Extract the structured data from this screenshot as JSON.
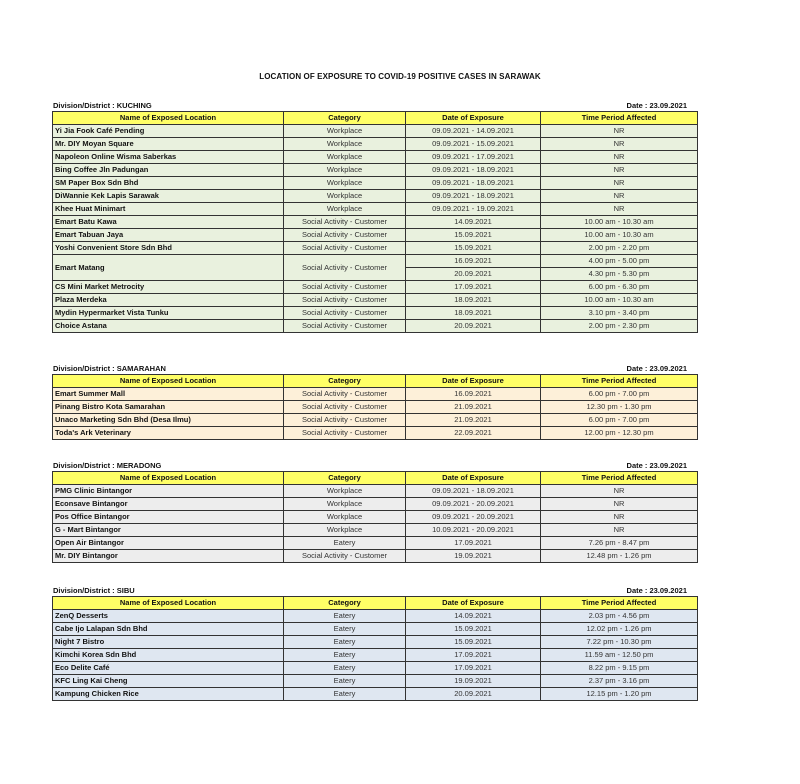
{
  "title": "LOCATION OF EXPOSURE TO COVID-19 POSITIVE CASES IN SARAWAK",
  "headers": [
    "Name of Exposed Location",
    "Category",
    "Date of Exposure",
    "Time Period Affected"
  ],
  "sections": [
    {
      "division": "Division/District : KUCHING",
      "date": "Date : 23.09.2021",
      "row_color": "#e9f1de",
      "rows": [
        {
          "name": "Yi Jia Fook Café Pending",
          "category": "Workplace",
          "dates": [
            "09.09.2021 - 14.09.2021"
          ],
          "times": [
            "NR"
          ]
        },
        {
          "name": "Mr. DIY Moyan Square",
          "category": "Workplace",
          "dates": [
            "09.09.2021 - 15.09.2021"
          ],
          "times": [
            "NR"
          ]
        },
        {
          "name": "Napoleon Online Wisma Saberkas",
          "category": "Workplace",
          "dates": [
            "09.09.2021 - 17.09.2021"
          ],
          "times": [
            "NR"
          ]
        },
        {
          "name": "Bing Coffee  Jln Padungan",
          "category": "Workplace",
          "dates": [
            "09.09.2021 - 18.09.2021"
          ],
          "times": [
            "NR"
          ]
        },
        {
          "name": "SM Paper Box Sdn Bhd",
          "category": "Workplace",
          "dates": [
            "09.09.2021 - 18.09.2021"
          ],
          "times": [
            "NR"
          ]
        },
        {
          "name": "DiWannie Kek Lapis Sarawak",
          "category": "Workplace",
          "dates": [
            "09.09.2021 - 18.09.2021"
          ],
          "times": [
            "NR"
          ]
        },
        {
          "name": "Khee Huat Minimart",
          "category": "Workplace",
          "dates": [
            "09.09.2021 - 19.09.2021"
          ],
          "times": [
            "NR"
          ]
        },
        {
          "name": "Emart Batu Kawa",
          "category": "Social Activity - Customer",
          "dates": [
            "14.09.2021"
          ],
          "times": [
            "10.00 am - 10.30 am"
          ]
        },
        {
          "name": "Emart Tabuan Jaya",
          "category": "Social Activity - Customer",
          "dates": [
            "15.09.2021"
          ],
          "times": [
            "10.00 am - 10.30 am"
          ]
        },
        {
          "name": "Yoshi Convenient Store Sdn Bhd",
          "category": "Social Activity - Customer",
          "dates": [
            "15.09.2021"
          ],
          "times": [
            "2.00 pm - 2.20 pm"
          ]
        },
        {
          "name": "Emart Matang",
          "category": "Social Activity - Customer",
          "dates": [
            "16.09.2021",
            "20.09.2021"
          ],
          "times": [
            "4.00 pm - 5.00 pm",
            "4.30 pm - 5.30 pm"
          ]
        },
        {
          "name": "CS Mini Market Metrocity",
          "category": "Social Activity - Customer",
          "dates": [
            "17.09.2021"
          ],
          "times": [
            "6.00 pm - 6.30 pm"
          ]
        },
        {
          "name": "Plaza Merdeka",
          "category": "Social Activity - Customer",
          "dates": [
            "18.09.2021"
          ],
          "times": [
            "10.00 am - 10.30 am"
          ]
        },
        {
          "name": "Mydin Hypermarket Vista Tunku",
          "category": "Social Activity - Customer",
          "dates": [
            "18.09.2021"
          ],
          "times": [
            "3.10 pm - 3.40 pm"
          ]
        },
        {
          "name": "Choice Astana",
          "category": "Social Activity - Customer",
          "dates": [
            "20.09.2021"
          ],
          "times": [
            "2.00 pm - 2.30 pm"
          ]
        }
      ]
    },
    {
      "division": "Division/District : SAMARAHAN",
      "date": "Date : 23.09.2021",
      "row_color": "#fdf0d9",
      "rows": [
        {
          "name": "Emart Summer Mall",
          "category": "Social Activity - Customer",
          "dates": [
            "16.09.2021"
          ],
          "times": [
            "6.00 pm - 7.00 pm"
          ]
        },
        {
          "name": "Pinang Bistro Kota Samarahan",
          "category": "Social Activity - Customer",
          "dates": [
            "21.09.2021"
          ],
          "times": [
            "12.30 pm - 1.30 pm"
          ]
        },
        {
          "name": "Unaco Marketing Sdn Bhd (Desa Ilmu)",
          "category": "Social Activity - Customer",
          "dates": [
            "21.09.2021"
          ],
          "times": [
            "6.00 pm - 7.00 pm"
          ]
        },
        {
          "name": "Toda's Ark Veterinary",
          "category": "Social Activity - Customer",
          "dates": [
            "22.09.2021"
          ],
          "times": [
            "12.00 pm - 12.30 pm"
          ]
        }
      ]
    },
    {
      "division": "Division/District : MERADONG",
      "date": "Date : 23.09.2021",
      "row_color": "#ededed",
      "rows": [
        {
          "name": "PMG Clinic Bintangor",
          "category": "Workplace",
          "dates": [
            "09.09.2021 - 18.09.2021"
          ],
          "times": [
            "NR"
          ]
        },
        {
          "name": "Econsave Bintangor",
          "category": "Workplace",
          "dates": [
            "09.09.2021 - 20.09.2021"
          ],
          "times": [
            "NR"
          ]
        },
        {
          "name": "Pos Office Bintangor",
          "category": "Workplace",
          "dates": [
            "09.09.2021 - 20.09.2021"
          ],
          "times": [
            "NR"
          ]
        },
        {
          "name": "G - Mart Bintangor",
          "category": "Workplace",
          "dates": [
            "10.09.2021 - 20.09.2021"
          ],
          "times": [
            "NR"
          ]
        },
        {
          "name": "Open Air Bintangor",
          "category": "Eatery",
          "dates": [
            "17.09.2021"
          ],
          "times": [
            "7.26 pm - 8.47 pm"
          ]
        },
        {
          "name": "Mr. DIY Bintangor",
          "category": "Social Activity - Customer",
          "dates": [
            "19.09.2021"
          ],
          "times": [
            "12.48 pm - 1.26 pm"
          ]
        }
      ]
    },
    {
      "division": "Division/District : SIBU",
      "date": "Date : 23.09.2021",
      "row_color": "#dfe7f1",
      "rows": [
        {
          "name": "ZenQ Desserts",
          "category": "Eatery",
          "dates": [
            "14.09.2021"
          ],
          "times": [
            "2.03 pm - 4.56 pm"
          ]
        },
        {
          "name": "Cabe Ijo Lalapan Sdn Bhd",
          "category": "Eatery",
          "dates": [
            "15.09.2021"
          ],
          "times": [
            "12.02 pm - 1.26 pm"
          ]
        },
        {
          "name": "Night 7 Bistro",
          "category": "Eatery",
          "dates": [
            "15.09.2021"
          ],
          "times": [
            "7.22 pm - 10.30 pm"
          ]
        },
        {
          "name": "Kimchi Korea Sdn Bhd",
          "category": "Eatery",
          "dates": [
            "17.09.2021"
          ],
          "times": [
            "11.59 am - 12.50 pm"
          ]
        },
        {
          "name": "Eco Delite Café",
          "category": "Eatery",
          "dates": [
            "17.09.2021"
          ],
          "times": [
            "8.22 pm - 9.15 pm"
          ]
        },
        {
          "name": "KFC Ling Kai Cheng",
          "category": "Eatery",
          "dates": [
            "19.09.2021"
          ],
          "times": [
            "2.37 pm - 3.16 pm"
          ]
        },
        {
          "name": "Kampung Chicken Rice",
          "category": "Eatery",
          "dates": [
            "20.09.2021"
          ],
          "times": [
            "12.15 pm - 1.20 pm"
          ]
        }
      ]
    }
  ]
}
